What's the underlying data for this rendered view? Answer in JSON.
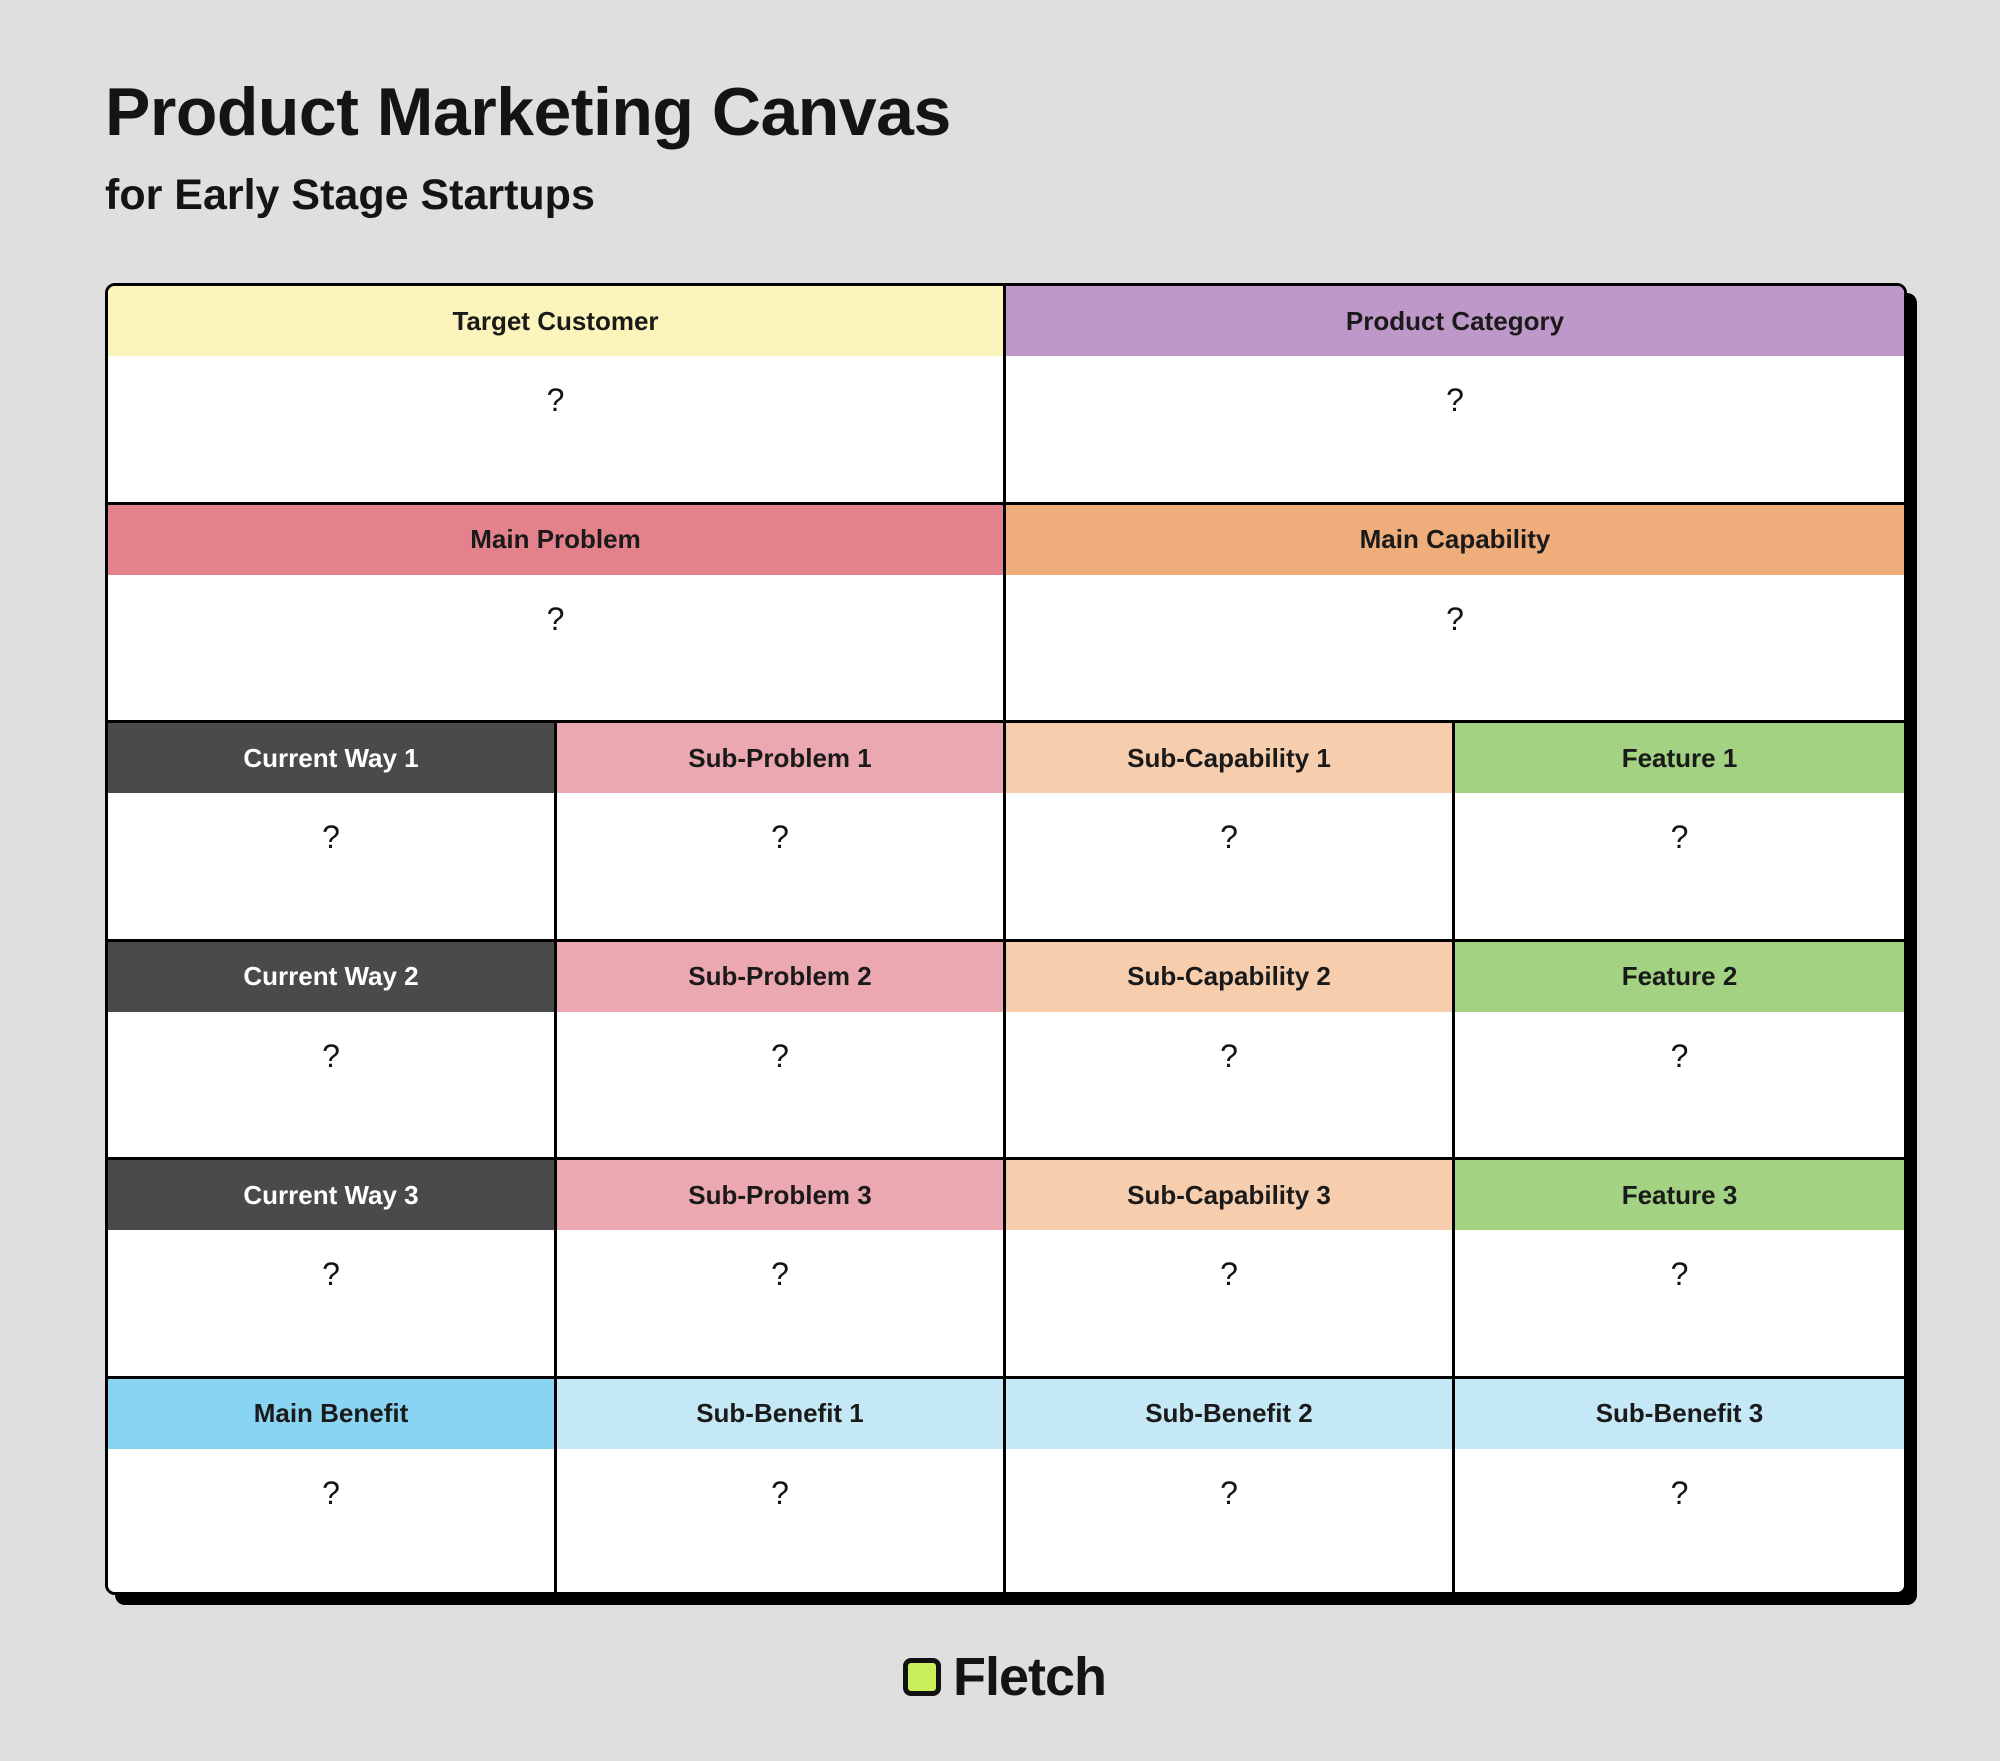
{
  "title": "Product Marketing Canvas",
  "subtitle": "for Early Stage Startups",
  "cells": [
    {
      "label": "Target Customer",
      "value": "?",
      "header_color": "#fbf4bb",
      "text_color": "#1a1a1a"
    },
    {
      "label": "Product Category",
      "value": "?",
      "header_color": "#bf98ca",
      "text_color": "#1a1a1a"
    },
    {
      "label": "Main Problem",
      "value": "?",
      "header_color": "#e4828c",
      "text_color": "#1a1a1a"
    },
    {
      "label": "Main Capability",
      "value": "?",
      "header_color": "#efad7c",
      "text_color": "#1a1a1a"
    },
    {
      "label": "Current Way 1",
      "value": "?",
      "header_color": "#4a4a4a",
      "text_color": "#ffffff"
    },
    {
      "label": "Sub-Problem 1",
      "value": "?",
      "header_color": "#eba8b0",
      "text_color": "#1a1a1a"
    },
    {
      "label": "Sub-Capability 1",
      "value": "?",
      "header_color": "#f6ceae",
      "text_color": "#1a1a1a"
    },
    {
      "label": "Feature 1",
      "value": "?",
      "header_color": "#a2d282",
      "text_color": "#1a1a1a"
    },
    {
      "label": "Current Way 2",
      "value": "?",
      "header_color": "#4a4a4a",
      "text_color": "#ffffff"
    },
    {
      "label": "Sub-Problem 2",
      "value": "?",
      "header_color": "#eba8b0",
      "text_color": "#1a1a1a"
    },
    {
      "label": "Sub-Capability 2",
      "value": "?",
      "header_color": "#f6ceae",
      "text_color": "#1a1a1a"
    },
    {
      "label": "Feature 2",
      "value": "?",
      "header_color": "#a2d282",
      "text_color": "#1a1a1a"
    },
    {
      "label": "Current Way 3",
      "value": "?",
      "header_color": "#4a4a4a",
      "text_color": "#ffffff"
    },
    {
      "label": "Sub-Problem 3",
      "value": "?",
      "header_color": "#eba8b0",
      "text_color": "#1a1a1a"
    },
    {
      "label": "Sub-Capability 3",
      "value": "?",
      "header_color": "#f6ceae",
      "text_color": "#1a1a1a"
    },
    {
      "label": "Feature 3",
      "value": "?",
      "header_color": "#a2d282",
      "text_color": "#1a1a1a"
    },
    {
      "label": "Main Benefit",
      "value": "?",
      "header_color": "#89d4f3",
      "text_color": "#1a1a1a"
    },
    {
      "label": "Sub-Benefit 1",
      "value": "?",
      "header_color": "#c5e8f7",
      "text_color": "#1a1a1a"
    },
    {
      "label": "Sub-Benefit 2",
      "value": "?",
      "header_color": "#c5e8f7",
      "text_color": "#1a1a1a"
    },
    {
      "label": "Sub-Benefit 3",
      "value": "?",
      "header_color": "#c5e8f7",
      "text_color": "#1a1a1a"
    }
  ],
  "logo": {
    "text": "Fletch",
    "icon": "square-logo-icon",
    "color": "#c9f05a"
  }
}
